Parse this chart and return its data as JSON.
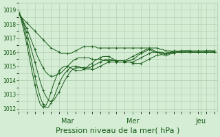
{
  "bg_color": "#d4edd4",
  "grid_color": "#b0ccb0",
  "line_color": "#1a5c1a",
  "xlabel": "Pression niveau de la mer( hPa )",
  "xlabel_fontsize": 8,
  "yticks": [
    1012,
    1013,
    1014,
    1015,
    1016,
    1017,
    1018,
    1019
  ],
  "ylim": [
    1011.8,
    1019.5
  ],
  "xlim": [
    0,
    73
  ],
  "xtick_positions": [
    18,
    42,
    67
  ],
  "xtick_labels": [
    "Mar",
    "Mer",
    "Jeu"
  ],
  "series": [
    {
      "x": [
        0,
        1,
        2,
        3,
        4,
        5,
        6,
        7,
        8,
        9,
        10,
        11,
        12,
        13,
        14,
        15,
        16,
        17,
        18,
        19,
        20,
        21,
        22,
        23,
        24,
        25,
        26,
        27,
        28,
        29,
        30,
        31,
        32,
        33,
        34,
        35,
        36,
        37,
        38,
        39,
        40,
        41,
        42,
        43,
        44,
        45,
        46,
        47,
        48,
        49,
        50,
        51,
        52,
        53,
        54,
        55,
        56,
        57,
        58,
        59,
        60,
        61,
        62,
        63,
        64,
        65,
        66,
        67,
        68,
        69,
        70,
        71,
        72
      ],
      "y": [
        1018.7,
        1018.5,
        1018.3,
        1018.1,
        1017.9,
        1017.7,
        1017.5,
        1017.3,
        1017.1,
        1016.9,
        1016.7,
        1016.5,
        1016.3,
        1016.2,
        1016.1,
        1016.0,
        1015.9,
        1015.9,
        1015.9,
        1015.9,
        1016.0,
        1016.1,
        1016.2,
        1016.3,
        1016.4,
        1016.4,
        1016.4,
        1016.4,
        1016.4,
        1016.3,
        1016.3,
        1016.3,
        1016.3,
        1016.3,
        1016.3,
        1016.3,
        1016.3,
        1016.3,
        1016.3,
        1016.3,
        1016.3,
        1016.3,
        1016.3,
        1016.3,
        1016.3,
        1016.3,
        1016.3,
        1016.3,
        1016.3,
        1016.3,
        1016.3,
        1016.3,
        1016.2,
        1016.2,
        1016.1,
        1016.1,
        1016.1,
        1016.0,
        1016.0,
        1016.0,
        1016.0,
        1016.0,
        1016.0,
        1016.0,
        1016.0,
        1016.0,
        1016.0,
        1016.0,
        1016.0,
        1016.1,
        1016.1,
        1016.1,
        1016.1
      ]
    },
    {
      "x": [
        0,
        1,
        2,
        3,
        4,
        5,
        6,
        7,
        8,
        9,
        10,
        11,
        12,
        13,
        14,
        15,
        16,
        17,
        18,
        19,
        20,
        21,
        22,
        23,
        24,
        25,
        26,
        27,
        28,
        29,
        30,
        31,
        32,
        33,
        34,
        35,
        36,
        37,
        38,
        39,
        40,
        41,
        42,
        43,
        44,
        45,
        46,
        47,
        48,
        49,
        50,
        51,
        52,
        53,
        54,
        55,
        56,
        57,
        58,
        59,
        60,
        61,
        62,
        63,
        64,
        65,
        66,
        67,
        68,
        69,
        70,
        71,
        72
      ],
      "y": [
        1018.8,
        1018.5,
        1018.1,
        1017.7,
        1017.2,
        1016.7,
        1016.2,
        1015.7,
        1015.3,
        1014.9,
        1014.6,
        1014.4,
        1014.3,
        1014.3,
        1014.4,
        1014.5,
        1014.6,
        1014.8,
        1015.0,
        1015.2,
        1015.4,
        1015.5,
        1015.6,
        1015.6,
        1015.6,
        1015.6,
        1015.6,
        1015.5,
        1015.5,
        1015.5,
        1015.5,
        1015.4,
        1015.4,
        1015.4,
        1015.4,
        1015.4,
        1015.4,
        1015.4,
        1015.4,
        1015.4,
        1015.3,
        1015.3,
        1015.2,
        1015.2,
        1015.2,
        1015.2,
        1015.3,
        1015.4,
        1015.5,
        1015.6,
        1015.7,
        1015.8,
        1015.8,
        1015.9,
        1015.9,
        1016.0,
        1016.0,
        1016.0,
        1016.0,
        1016.0,
        1016.0,
        1016.0,
        1016.1,
        1016.1,
        1016.1,
        1016.1,
        1016.1,
        1016.1,
        1016.1,
        1016.1,
        1016.1,
        1016.1,
        1016.0
      ]
    },
    {
      "x": [
        0,
        1,
        2,
        3,
        4,
        5,
        6,
        7,
        8,
        9,
        10,
        11,
        12,
        13,
        14,
        15,
        16,
        17,
        18,
        19,
        20,
        21,
        22,
        23,
        24,
        25,
        26,
        27,
        28,
        29,
        30,
        31,
        32,
        33,
        34,
        35,
        36,
        37,
        38,
        39,
        40,
        41,
        42,
        43,
        44,
        45,
        46,
        47,
        48,
        49,
        50,
        51,
        52,
        53,
        54,
        55,
        56,
        57,
        58,
        59,
        60,
        61,
        62,
        63,
        64,
        65,
        66,
        67,
        68,
        69,
        70,
        71,
        72
      ],
      "y": [
        1018.9,
        1018.5,
        1018.0,
        1017.4,
        1016.7,
        1016.0,
        1015.3,
        1014.6,
        1013.9,
        1013.3,
        1012.9,
        1012.6,
        1012.5,
        1012.6,
        1012.9,
        1013.2,
        1013.6,
        1014.0,
        1014.3,
        1014.6,
        1014.8,
        1014.9,
        1014.9,
        1014.9,
        1014.9,
        1014.8,
        1014.8,
        1014.8,
        1014.8,
        1014.9,
        1015.0,
        1015.1,
        1015.2,
        1015.3,
        1015.3,
        1015.3,
        1015.3,
        1015.3,
        1015.3,
        1015.3,
        1015.3,
        1015.3,
        1015.3,
        1015.4,
        1015.5,
        1015.6,
        1015.7,
        1015.8,
        1015.9,
        1016.0,
        1016.0,
        1016.0,
        1016.0,
        1016.0,
        1015.9,
        1015.9,
        1015.9,
        1015.9,
        1016.0,
        1016.0,
        1016.1,
        1016.1,
        1016.1,
        1016.1,
        1016.0,
        1016.0,
        1016.0,
        1016.0,
        1016.0,
        1016.0,
        1016.0,
        1016.0,
        1016.0
      ]
    },
    {
      "x": [
        0,
        1,
        2,
        3,
        4,
        5,
        6,
        7,
        8,
        9,
        10,
        11,
        12,
        13,
        14,
        15,
        16,
        17,
        18,
        19,
        20,
        21,
        22,
        23,
        24,
        25,
        26,
        27,
        28,
        29,
        30,
        31,
        32,
        33,
        34,
        35,
        36,
        37,
        38,
        39,
        40,
        41,
        42,
        43,
        44,
        45,
        46,
        47,
        48,
        49,
        50,
        51,
        52,
        53,
        54,
        55,
        56,
        57,
        58,
        59,
        60,
        61,
        62,
        63,
        64,
        65,
        66,
        67,
        68,
        69,
        70,
        71,
        72
      ],
      "y": [
        1018.9,
        1018.4,
        1017.8,
        1017.0,
        1016.1,
        1015.2,
        1014.3,
        1013.5,
        1012.8,
        1012.3,
        1012.1,
        1012.1,
        1012.4,
        1012.8,
        1013.3,
        1013.8,
        1014.2,
        1014.5,
        1014.7,
        1014.9,
        1015.0,
        1015.0,
        1015.0,
        1014.9,
        1014.9,
        1014.9,
        1014.9,
        1015.0,
        1015.1,
        1015.2,
        1015.3,
        1015.4,
        1015.5,
        1015.5,
        1015.5,
        1015.4,
        1015.4,
        1015.3,
        1015.3,
        1015.3,
        1015.4,
        1015.4,
        1015.5,
        1015.6,
        1015.8,
        1015.9,
        1016.0,
        1016.1,
        1016.2,
        1016.2,
        1016.1,
        1016.0,
        1016.0,
        1015.9,
        1015.8,
        1015.8,
        1015.9,
        1016.0,
        1016.0,
        1016.1,
        1016.1,
        1016.1,
        1016.1,
        1016.0,
        1016.0,
        1016.0,
        1016.0,
        1016.0,
        1016.0,
        1016.0,
        1016.0,
        1016.0,
        1016.0
      ]
    },
    {
      "x": [
        0,
        1,
        2,
        3,
        4,
        5,
        6,
        7,
        8,
        9,
        10,
        11,
        12,
        13,
        14,
        15,
        16,
        17,
        18,
        19,
        20,
        21,
        22,
        23,
        24,
        25,
        26,
        27,
        28,
        29,
        30,
        31,
        32,
        33,
        34,
        35,
        36,
        37,
        38,
        39,
        40,
        41,
        42,
        43,
        44,
        45,
        46,
        47,
        48,
        49,
        50,
        51,
        52,
        53,
        54,
        55,
        56,
        57,
        58,
        59,
        60,
        61,
        62,
        63,
        64,
        65,
        66,
        67,
        68,
        69,
        70,
        71,
        72
      ],
      "y": [
        1018.9,
        1018.3,
        1017.5,
        1016.6,
        1015.6,
        1014.6,
        1013.7,
        1012.9,
        1012.3,
        1012.1,
        1012.2,
        1012.6,
        1013.2,
        1013.8,
        1014.3,
        1014.7,
        1014.9,
        1015.0,
        1015.0,
        1014.9,
        1014.8,
        1014.7,
        1014.7,
        1014.7,
        1014.8,
        1014.9,
        1015.1,
        1015.2,
        1015.4,
        1015.5,
        1015.6,
        1015.7,
        1015.7,
        1015.7,
        1015.6,
        1015.5,
        1015.4,
        1015.4,
        1015.4,
        1015.4,
        1015.5,
        1015.6,
        1015.7,
        1015.8,
        1015.9,
        1016.0,
        1016.1,
        1016.2,
        1016.2,
        1016.1,
        1016.0,
        1016.0,
        1015.9,
        1015.8,
        1015.8,
        1015.9,
        1016.0,
        1016.1,
        1016.1,
        1016.0,
        1016.0,
        1016.0,
        1016.0,
        1016.0,
        1016.0,
        1016.0,
        1016.0,
        1016.0,
        1016.0,
        1016.0,
        1016.0,
        1016.0,
        1016.0
      ]
    }
  ]
}
